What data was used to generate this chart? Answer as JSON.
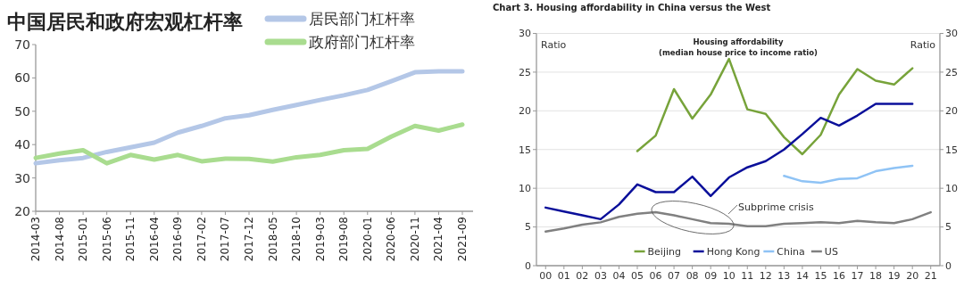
{
  "chart_data": [
    {
      "type": "line",
      "title": "中国居民和政府宏观杠杆率",
      "categories": [
        "2014-03",
        "2014-08",
        "2015-01",
        "2015-06",
        "2015-11",
        "2016-04",
        "2016-09",
        "2017-02",
        "2017-07",
        "2017-12",
        "2018-05",
        "2018-10",
        "2019-03",
        "2019-08",
        "2020-01",
        "2020-06",
        "2020-11",
        "2021-04",
        "2021-09"
      ],
      "series": [
        {
          "name": "居民部门杠杆率",
          "color": "#b4c7e7",
          "values": [
            34.4,
            35.3,
            36.0,
            37.8,
            39.2,
            40.6,
            43.6,
            45.6,
            47.9,
            48.8,
            50.4,
            51.9,
            53.4,
            54.8,
            56.4,
            59.0,
            61.7,
            62.0,
            62.0
          ]
        },
        {
          "name": "政府部门杠杆率",
          "color": "#a9dc8f",
          "values": [
            36.0,
            37.3,
            38.3,
            34.4,
            36.9,
            35.5,
            36.9,
            35.0,
            35.8,
            35.7,
            34.9,
            36.2,
            36.9,
            38.3,
            38.7,
            42.4,
            45.6,
            44.2,
            46.0
          ]
        }
      ],
      "ylim": [
        20,
        70
      ],
      "yticks": [
        20,
        30,
        40,
        50,
        60,
        70
      ],
      "legend": "top right"
    },
    {
      "type": "line",
      "title": "Chart 3. Housing affordability in China versus the West",
      "subtitle": "Housing affordability\n(median house price to income ratio)",
      "ylabel": "Ratio",
      "y2label": "Ratio",
      "categories": [
        "00",
        "01",
        "02",
        "03",
        "04",
        "05",
        "06",
        "07",
        "08",
        "09",
        "10",
        "11",
        "12",
        "13",
        "14",
        "15",
        "16",
        "17",
        "18",
        "19",
        "20",
        "21"
      ],
      "series": [
        {
          "name": "Beijing",
          "color": "#77a33a",
          "values": [
            null,
            null,
            null,
            null,
            null,
            14.8,
            16.8,
            22.8,
            19.0,
            22.1,
            26.7,
            20.2,
            19.6,
            16.6,
            14.4,
            16.9,
            22.1,
            25.4,
            23.9,
            23.4,
            25.5,
            null
          ]
        },
        {
          "name": "Hong Kong",
          "color": "#0a0f9a",
          "values": [
            7.5,
            7.0,
            6.5,
            6.0,
            7.9,
            10.5,
            9.5,
            9.5,
            11.5,
            9.0,
            11.4,
            12.7,
            13.5,
            15.0,
            17.0,
            19.1,
            18.1,
            19.4,
            20.9,
            20.9,
            20.9,
            null
          ]
        },
        {
          "name": "China",
          "color": "#8fc3f5",
          "values": [
            null,
            null,
            null,
            null,
            null,
            null,
            null,
            null,
            null,
            null,
            null,
            null,
            null,
            11.6,
            10.9,
            10.7,
            11.2,
            11.3,
            12.2,
            12.6,
            12.9,
            null
          ]
        },
        {
          "name": "US",
          "color": "#808080",
          "values": [
            4.4,
            4.8,
            5.3,
            5.6,
            6.3,
            6.7,
            6.9,
            6.5,
            6.0,
            5.5,
            5.4,
            5.1,
            5.1,
            5.4,
            5.5,
            5.6,
            5.5,
            5.8,
            5.6,
            5.5,
            6.0,
            6.9
          ]
        }
      ],
      "ylim": [
        0,
        30
      ],
      "yticks": [
        0,
        5,
        10,
        15,
        20,
        25,
        30
      ],
      "y2lim": [
        0,
        30
      ],
      "y2ticks": [
        0,
        5,
        10,
        15,
        20,
        25,
        30
      ],
      "grid": "y",
      "legend": "bottom",
      "annotations": [
        "Subprime crisis"
      ]
    }
  ]
}
